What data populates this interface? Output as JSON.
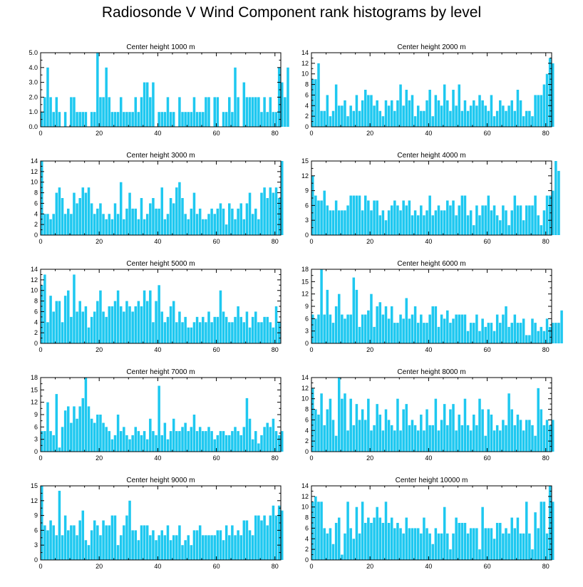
{
  "figure_title": "Radiosonde V Wind Component rank histograms by level",
  "bar_color": "#1ec8f0",
  "chart_data": [
    {
      "type": "bar",
      "title": "Center height 1000 m",
      "xlim": [
        0,
        82
      ],
      "ylim": [
        0,
        5
      ],
      "xticks": [
        "0",
        "20",
        "40",
        "60",
        "80"
      ],
      "yticks": [
        "0.0",
        "1.0",
        "2.0",
        "3.0",
        "4.0",
        "5.0"
      ],
      "values": [
        1,
        2,
        4,
        2,
        1,
        2,
        1,
        0,
        1,
        0,
        2,
        2,
        1,
        1,
        1,
        1,
        0,
        1,
        1,
        5,
        2,
        2,
        4,
        2,
        1,
        1,
        1,
        2,
        1,
        1,
        1,
        1,
        2,
        1,
        2,
        3,
        3,
        2,
        3,
        0,
        1,
        1,
        1,
        2,
        1,
        1,
        0,
        2,
        1,
        1,
        1,
        1,
        2,
        1,
        1,
        1,
        2,
        2,
        0,
        2,
        2,
        0,
        1,
        1,
        2,
        1,
        4,
        2,
        0,
        3,
        2,
        2,
        2,
        2,
        2,
        1,
        2,
        1,
        2,
        1,
        1,
        4,
        3,
        2,
        4
      ]
    },
    {
      "type": "bar",
      "title": "Center height 2000 m",
      "xlim": [
        0,
        82
      ],
      "ylim": [
        0,
        14
      ],
      "xticks": [
        "0",
        "20",
        "40",
        "60",
        "80"
      ],
      "yticks": [
        "0",
        "2",
        "4",
        "6",
        "8",
        "10",
        "12",
        "14"
      ],
      "values": [
        9,
        9,
        12,
        3,
        3,
        6,
        2,
        3,
        8,
        4,
        4,
        5,
        2,
        4,
        3,
        6,
        3,
        5,
        7,
        6,
        6,
        4,
        5,
        3,
        2,
        5,
        4,
        5,
        3,
        5,
        8,
        4,
        7,
        5,
        6,
        2,
        4,
        3,
        3,
        5,
        7,
        2,
        6,
        5,
        4,
        8,
        5,
        3,
        7,
        4,
        8,
        3,
        5,
        3,
        4,
        5,
        4,
        6,
        5,
        4,
        3,
        6,
        2,
        3,
        5,
        4,
        3,
        4,
        5,
        3,
        7,
        5,
        2,
        3,
        3,
        2,
        6,
        6,
        6,
        8,
        10,
        13,
        12
      ]
    },
    {
      "type": "bar",
      "title": "Center height 3000 m",
      "xlim": [
        0,
        82
      ],
      "ylim": [
        0,
        14
      ],
      "xticks": [
        "0",
        "20",
        "40",
        "60",
        "80"
      ],
      "yticks": [
        "0",
        "2",
        "4",
        "6",
        "8",
        "10",
        "12",
        "14"
      ],
      "values": [
        14,
        4,
        4,
        3,
        4,
        8,
        9,
        7,
        4,
        5,
        4,
        8,
        6,
        7,
        9,
        8,
        9,
        6,
        4,
        5,
        6,
        4,
        3,
        4,
        3,
        6,
        4,
        10,
        3,
        5,
        8,
        5,
        5,
        3,
        7,
        3,
        4,
        6,
        7,
        5,
        5,
        9,
        3,
        4,
        7,
        6,
        9,
        10,
        7,
        4,
        3,
        5,
        8,
        4,
        5,
        3,
        3,
        4,
        5,
        4,
        5,
        6,
        5,
        2,
        6,
        5,
        3,
        5,
        6,
        3,
        6,
        8,
        4,
        5,
        3,
        8,
        9,
        7,
        9,
        8,
        9,
        7,
        14
      ]
    },
    {
      "type": "bar",
      "title": "Center height 4000 m",
      "xlim": [
        0,
        82
      ],
      "ylim": [
        0,
        15
      ],
      "xticks": [
        "0",
        "20",
        "40",
        "60",
        "80"
      ],
      "yticks": [
        "0",
        "3",
        "6",
        "9",
        "12",
        "15"
      ],
      "values": [
        12,
        8,
        7,
        7,
        9,
        6,
        5,
        5,
        7,
        5,
        5,
        5,
        6,
        8,
        8,
        8,
        8,
        5,
        8,
        7,
        5,
        7,
        7,
        4,
        5,
        3,
        5,
        6,
        7,
        6,
        5,
        7,
        6,
        7,
        4,
        5,
        4,
        6,
        4,
        5,
        8,
        4,
        5,
        6,
        5,
        5,
        7,
        6,
        7,
        4,
        6,
        8,
        8,
        4,
        5,
        2,
        6,
        4,
        6,
        6,
        8,
        5,
        6,
        4,
        3,
        6,
        5,
        2,
        5,
        8,
        6,
        6,
        3,
        6,
        6,
        6,
        8,
        4,
        2,
        5,
        8,
        8,
        9,
        15,
        13
      ]
    },
    {
      "type": "bar",
      "title": "Center height 5000 m",
      "xlim": [
        0,
        82
      ],
      "ylim": [
        0,
        14
      ],
      "xticks": [
        "0",
        "20",
        "40",
        "60",
        "80"
      ],
      "yticks": [
        "0",
        "2",
        "4",
        "6",
        "8",
        "10",
        "12",
        "14"
      ],
      "values": [
        11,
        13,
        4,
        9,
        6,
        8,
        8,
        4,
        9,
        10,
        5,
        13,
        6,
        8,
        6,
        7,
        3,
        5,
        6,
        8,
        10,
        6,
        5,
        7,
        7,
        8,
        10,
        7,
        6,
        8,
        7,
        6,
        7,
        8,
        7,
        10,
        8,
        10,
        4,
        8,
        11,
        6,
        4,
        5,
        7,
        8,
        4,
        6,
        4,
        5,
        3,
        3,
        4,
        5,
        4,
        5,
        4,
        6,
        4,
        5,
        5,
        10,
        6,
        5,
        4,
        4,
        5,
        7,
        5,
        4,
        6,
        3,
        5,
        6,
        4,
        4,
        5,
        5,
        4,
        3,
        7,
        4
      ]
    },
    {
      "type": "bar",
      "title": "Center height 6000 m",
      "xlim": [
        0,
        82
      ],
      "ylim": [
        0,
        18
      ],
      "xticks": [
        "0",
        "20",
        "40",
        "60",
        "80"
      ],
      "yticks": [
        "0",
        "3",
        "6",
        "9",
        "12",
        "15",
        "18"
      ],
      "values": [
        7,
        6,
        7,
        18,
        7,
        13,
        7,
        5,
        9,
        12,
        7,
        6,
        7,
        7,
        16,
        13,
        4,
        7,
        7,
        8,
        12,
        4,
        9,
        10,
        7,
        9,
        6,
        9,
        5,
        5,
        7,
        6,
        11,
        6,
        7,
        9,
        5,
        7,
        5,
        5,
        7,
        9,
        9,
        4,
        7,
        6,
        8,
        5,
        6,
        7,
        7,
        7,
        7,
        3,
        5,
        5,
        7,
        3,
        6,
        4,
        5,
        5,
        3,
        7,
        5,
        7,
        9,
        4,
        5,
        7,
        5,
        5,
        6,
        2,
        2,
        6,
        5,
        3,
        4,
        3,
        6,
        4,
        5,
        5,
        5,
        8
      ]
    },
    {
      "type": "bar",
      "title": "Center height 7000 m",
      "xlim": [
        0,
        82
      ],
      "ylim": [
        0,
        18
      ],
      "xticks": [
        "0",
        "20",
        "40",
        "60",
        "80"
      ],
      "yticks": [
        "0",
        "3",
        "6",
        "9",
        "12",
        "15",
        "18"
      ],
      "values": [
        5,
        5,
        12,
        5,
        4,
        14,
        1,
        6,
        10,
        11,
        7,
        11,
        8,
        11,
        13,
        18,
        11,
        8,
        7,
        9,
        9,
        7,
        6,
        5,
        3,
        4,
        9,
        5,
        6,
        4,
        3,
        4,
        6,
        5,
        4,
        5,
        3,
        8,
        5,
        4,
        16,
        4,
        7,
        3,
        5,
        8,
        5,
        5,
        6,
        7,
        5,
        6,
        9,
        5,
        6,
        5,
        5,
        6,
        5,
        3,
        4,
        5,
        5,
        4,
        4,
        5,
        6,
        5,
        4,
        6,
        13,
        8,
        3,
        5,
        2,
        4,
        6,
        7,
        6,
        8,
        5,
        4,
        5
      ]
    },
    {
      "type": "bar",
      "title": "Center height 8000 m",
      "xlim": [
        0,
        82
      ],
      "ylim": [
        0,
        14
      ],
      "xticks": [
        "0",
        "20",
        "40",
        "60",
        "80"
      ],
      "yticks": [
        "0",
        "2",
        "4",
        "6",
        "8",
        "10",
        "12",
        "14"
      ],
      "values": [
        12,
        8,
        7,
        11,
        5,
        8,
        10,
        6,
        3,
        14,
        10,
        11,
        4,
        10,
        5,
        9,
        6,
        8,
        6,
        10,
        4,
        5,
        9,
        7,
        4,
        8,
        6,
        5,
        4,
        10,
        4,
        8,
        9,
        5,
        6,
        5,
        4,
        7,
        4,
        8,
        5,
        5,
        10,
        4,
        6,
        9,
        5,
        8,
        9,
        4,
        7,
        5,
        10,
        5,
        4,
        7,
        5,
        10,
        8,
        3,
        8,
        7,
        4,
        5,
        4,
        6,
        5,
        11,
        8,
        5,
        7,
        6,
        4,
        6,
        6,
        5,
        3,
        12,
        8,
        5,
        6,
        5,
        6
      ]
    },
    {
      "type": "bar",
      "title": "Center height 9000 m",
      "xlim": [
        0,
        82
      ],
      "ylim": [
        0,
        15
      ],
      "xticks": [
        "0",
        "20",
        "40",
        "60",
        "80"
      ],
      "yticks": [
        "0",
        "3",
        "6",
        "9",
        "12",
        "15"
      ],
      "values": [
        15,
        7,
        6,
        8,
        7,
        5,
        14,
        5,
        9,
        6,
        7,
        7,
        5,
        8,
        10,
        4,
        3,
        6,
        8,
        7,
        5,
        8,
        7,
        7,
        9,
        9,
        3,
        5,
        7,
        9,
        12,
        6,
        6,
        4,
        7,
        7,
        7,
        5,
        6,
        4,
        5,
        6,
        5,
        7,
        4,
        5,
        5,
        7,
        3,
        4,
        5,
        3,
        6,
        6,
        7,
        5,
        5,
        5,
        5,
        5,
        6,
        6,
        4,
        7,
        5,
        7,
        5,
        6,
        5,
        8,
        8,
        6,
        5,
        9,
        9,
        8,
        9,
        7,
        9,
        11,
        9,
        11,
        10
      ]
    },
    {
      "type": "bar",
      "title": "Center height 10000 m",
      "xlim": [
        0,
        82
      ],
      "ylim": [
        0,
        14
      ],
      "xticks": [
        "0",
        "20",
        "40",
        "60",
        "80"
      ],
      "yticks": [
        "0",
        "2",
        "4",
        "6",
        "8",
        "10",
        "12",
        "14"
      ],
      "values": [
        11,
        12,
        11,
        11,
        6,
        5,
        6,
        3,
        7,
        8,
        1,
        5,
        11,
        6,
        4,
        10,
        5,
        11,
        7,
        8,
        7,
        8,
        10,
        8,
        7,
        11,
        7,
        8,
        6,
        7,
        6,
        5,
        8,
        6,
        6,
        6,
        6,
        5,
        8,
        6,
        5,
        3,
        6,
        5,
        5,
        10,
        5,
        2,
        5,
        8,
        7,
        7,
        7,
        5,
        6,
        6,
        6,
        2,
        10,
        6,
        6,
        6,
        4,
        7,
        7,
        5,
        6,
        5,
        8,
        6,
        8,
        5,
        5,
        11,
        5,
        2,
        9,
        6,
        11,
        11,
        5,
        14,
        11
      ]
    }
  ]
}
